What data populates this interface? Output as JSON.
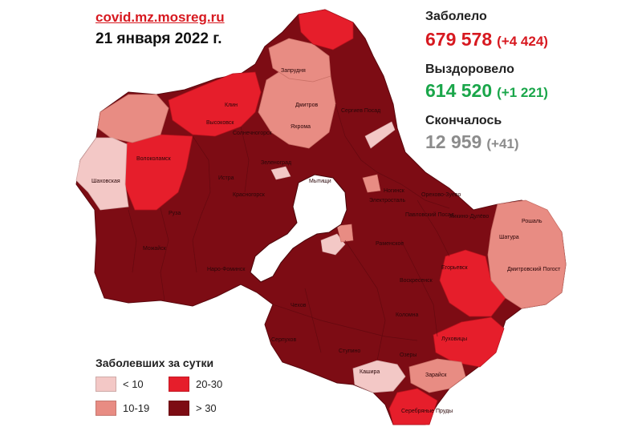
{
  "header": {
    "source": "covid.mz.mosreg.ru",
    "date": "21 января 2022 г."
  },
  "stats": {
    "infected": {
      "label": "Заболело",
      "value": "679 578",
      "delta": "(+4 424)",
      "color": "#d71920"
    },
    "recovered": {
      "label": "Выздоровело",
      "value": "614 520",
      "delta": "(+1 221)",
      "color": "#1aa64a"
    },
    "deaths": {
      "label": "Скончалось",
      "value": "12 959",
      "delta": "(+41)",
      "color": "#8c8c8c"
    }
  },
  "legend": {
    "title": "Заболевших за сутки",
    "items": [
      {
        "label": "< 10",
        "color": "#f3c8c6"
      },
      {
        "label": "10-19",
        "color": "#e88c83"
      },
      {
        "label": "20-30",
        "color": "#e61e2b"
      },
      {
        "label": "> 30",
        "color": "#7d0c14"
      }
    ]
  },
  "map": {
    "colors": {
      "gt30": "#7d0c14",
      "r20_30": "#e61e2b",
      "r10_19": "#e88c83",
      "lt10": "#f3c8c6",
      "moscow": "#ffffff"
    },
    "cities": [
      "Запрудня",
      "Дмитров",
      "Яхрома",
      "Сергиев Посад",
      "Клин",
      "Высоковск",
      "Солнечногорск",
      "Волоколамск",
      "Шаховская",
      "Зеленоград",
      "Мытищи",
      "Истра",
      "Красногорск",
      "Руза",
      "Ногинск",
      "Электросталь",
      "Павловский Посад",
      "Орехово-Зуево",
      "Ликино-Дулёво",
      "Рошаль",
      "Шатура",
      "Раменское",
      "Воскресенск",
      "Егорьевск",
      "Дмитровский Погост",
      "Наро-Фоминск",
      "Можайск",
      "Чехов",
      "Коломна",
      "Луховицы",
      "Серпухов",
      "Ступино",
      "Озеры",
      "Кашира",
      "Зарайск",
      "Серебряные Пруды"
    ]
  }
}
